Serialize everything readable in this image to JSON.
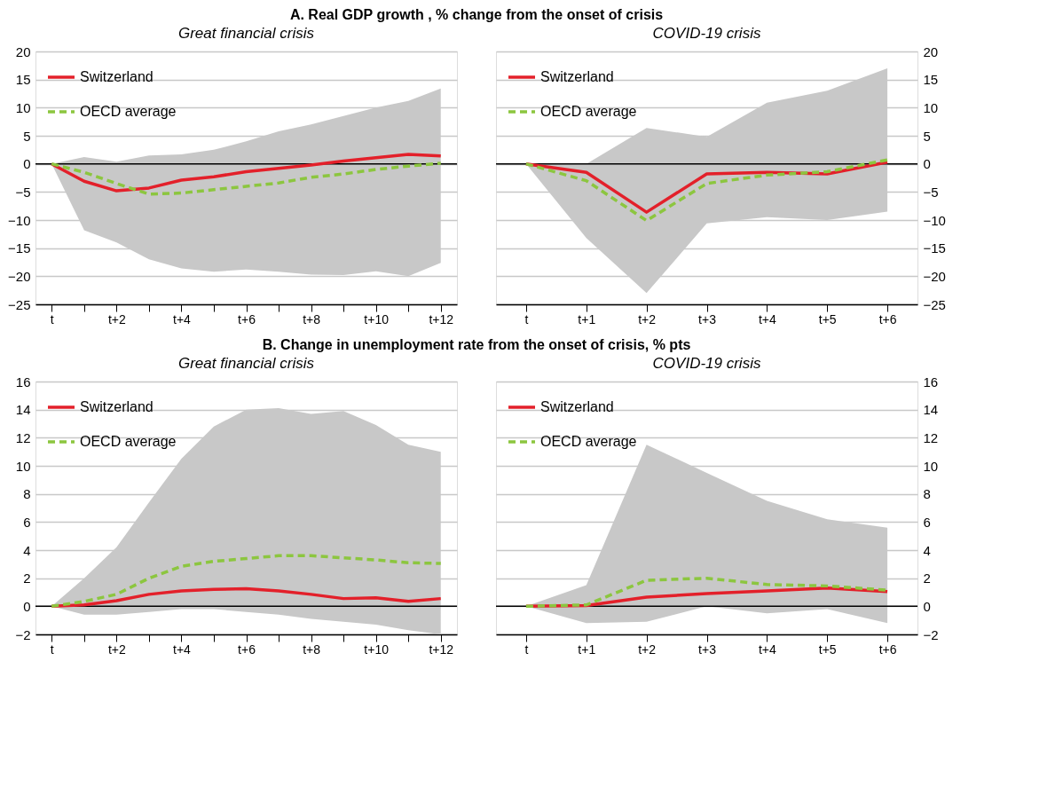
{
  "chart_data": [
    {
      "type": "line",
      "title": "A. Real GDP growth , % change from the onset of crisis",
      "subtitle": "Great financial crisis",
      "categories": [
        "t",
        null,
        "t+2",
        null,
        "t+4",
        null,
        "t+6",
        null,
        "t+8",
        null,
        "t+10",
        null,
        "t+12"
      ],
      "series": [
        {
          "name": "Switzerland",
          "color": "#e3202a",
          "line_style": "solid",
          "values": [
            0,
            -3.1,
            -4.8,
            -4.3,
            -2.9,
            -2.3,
            -1.4,
            -0.8,
            -0.2,
            0.5,
            1.1,
            1.7,
            1.4
          ]
        },
        {
          "name": "OECD average",
          "color": "#8cc63f",
          "line_style": "dashed",
          "values": [
            0,
            -1.5,
            -3.5,
            -5.4,
            -5.2,
            -4.6,
            -4,
            -3.4,
            -2.4,
            -1.8,
            -1,
            -0.4,
            0.1
          ],
          "lower": [
            0,
            -11.8,
            -14,
            -17,
            -18.6,
            -19.2,
            -18.8,
            -19.2,
            -19.7,
            -19.8,
            -19.1,
            -20,
            -17.6
          ],
          "upper": [
            0,
            1.2,
            0.4,
            1.5,
            1.7,
            2.5,
            4,
            5.8,
            7,
            8.5,
            10,
            11.2,
            13.4
          ]
        }
      ],
      "ylim": [
        -25,
        20
      ],
      "yticks": [
        -25,
        -20,
        -15,
        -10,
        -5,
        0,
        5,
        10,
        15,
        20
      ],
      "ref_lines": [
        {
          "axis": "y",
          "value": 0,
          "color": "#000000"
        }
      ],
      "grid": "y",
      "legend": "top left"
    },
    {
      "type": "line",
      "subtitle": "COVID-19 crisis",
      "categories": [
        "t",
        "t+1",
        "t+2",
        "t+3",
        "t+4",
        "t+5",
        "t+6"
      ],
      "series": [
        {
          "name": "Switzerland",
          "color": "#e3202a",
          "line_style": "solid",
          "axis": "y2",
          "values": [
            0,
            -1.5,
            -8.6,
            -1.8,
            -1.5,
            -1.8,
            0.3
          ]
        },
        {
          "name": "OECD average",
          "color": "#8cc63f",
          "line_style": "dashed",
          "axis": "y2",
          "values": [
            0,
            -3,
            -10.1,
            -3.5,
            -2,
            -1.4,
            0.7
          ],
          "lower": [
            0,
            -13.2,
            -23,
            -10.6,
            -9.5,
            -10,
            -8.5
          ],
          "upper": [
            0,
            0,
            6.4,
            4.8,
            10.9,
            13,
            17
          ]
        }
      ],
      "y2lim": [
        -25,
        20
      ],
      "y2ticks": [
        -25,
        -20,
        -15,
        -10,
        -5,
        0,
        5,
        10,
        15,
        20
      ],
      "ref_lines": [
        {
          "axis": "y2",
          "value": 0,
          "color": "#000000"
        }
      ],
      "grid": "y",
      "legend": "top left"
    },
    {
      "type": "line",
      "title": "B. Change in unemployment rate from the onset of crisis, % pts",
      "subtitle": "Great financial crisis",
      "categories": [
        "t",
        null,
        "t+2",
        null,
        "t+4",
        null,
        "t+6",
        null,
        "t+8",
        null,
        "t+10",
        null,
        "t+12"
      ],
      "series": [
        {
          "name": "Switzerland",
          "color": "#e3202a",
          "line_style": "solid",
          "values": [
            0,
            0.1,
            0.4,
            0.85,
            1.1,
            1.2,
            1.25,
            1.1,
            0.85,
            0.55,
            0.6,
            0.35,
            0.55
          ]
        },
        {
          "name": "OECD average",
          "color": "#8cc63f",
          "line_style": "dashed",
          "values": [
            0,
            0.35,
            0.85,
            2,
            2.85,
            3.2,
            3.4,
            3.6,
            3.6,
            3.45,
            3.3,
            3.1,
            3.05
          ],
          "lower": [
            0,
            -0.6,
            -0.6,
            -0.4,
            -0.2,
            -0.2,
            -0.4,
            -0.6,
            -0.9,
            -1.1,
            -1.3,
            -1.7,
            -2
          ],
          "upper": [
            0,
            2,
            4.2,
            7.4,
            10.5,
            12.8,
            14,
            14.1,
            13.7,
            13.9,
            12.9,
            11.5,
            11
          ]
        }
      ],
      "ylim": [
        -2,
        16
      ],
      "yticks": [
        -2,
        0,
        2,
        4,
        6,
        8,
        10,
        12,
        14,
        16
      ],
      "ref_lines": [
        {
          "axis": "y",
          "value": 0,
          "color": "#000000"
        }
      ],
      "grid": "y",
      "legend": "top left"
    },
    {
      "type": "line",
      "subtitle": "COVID-19 crisis",
      "categories": [
        "t",
        "t+1",
        "t+2",
        "t+3",
        "t+4",
        "t+5",
        "t+6"
      ],
      "series": [
        {
          "name": "Switzerland",
          "color": "#e3202a",
          "line_style": "solid",
          "axis": "y2",
          "values": [
            0,
            0.05,
            0.65,
            0.9,
            1.1,
            1.3,
            1.05
          ]
        },
        {
          "name": "OECD average",
          "color": "#8cc63f",
          "line_style": "dashed",
          "axis": "y2",
          "values": [
            0,
            0.1,
            1.85,
            2,
            1.55,
            1.45,
            1.15
          ],
          "lower": [
            0,
            -1.2,
            -1.1,
            0,
            -0.5,
            -0.2,
            -1.2
          ],
          "upper": [
            0,
            1.5,
            11.5,
            9.5,
            7.5,
            6.2,
            5.6
          ]
        }
      ],
      "y2lim": [
        -2,
        16
      ],
      "y2ticks": [
        -2,
        0,
        2,
        4,
        6,
        8,
        10,
        12,
        14,
        16
      ],
      "ref_lines": [
        {
          "axis": "y2",
          "value": 0,
          "color": "#000000"
        }
      ],
      "grid": "y",
      "legend": "top left"
    }
  ]
}
